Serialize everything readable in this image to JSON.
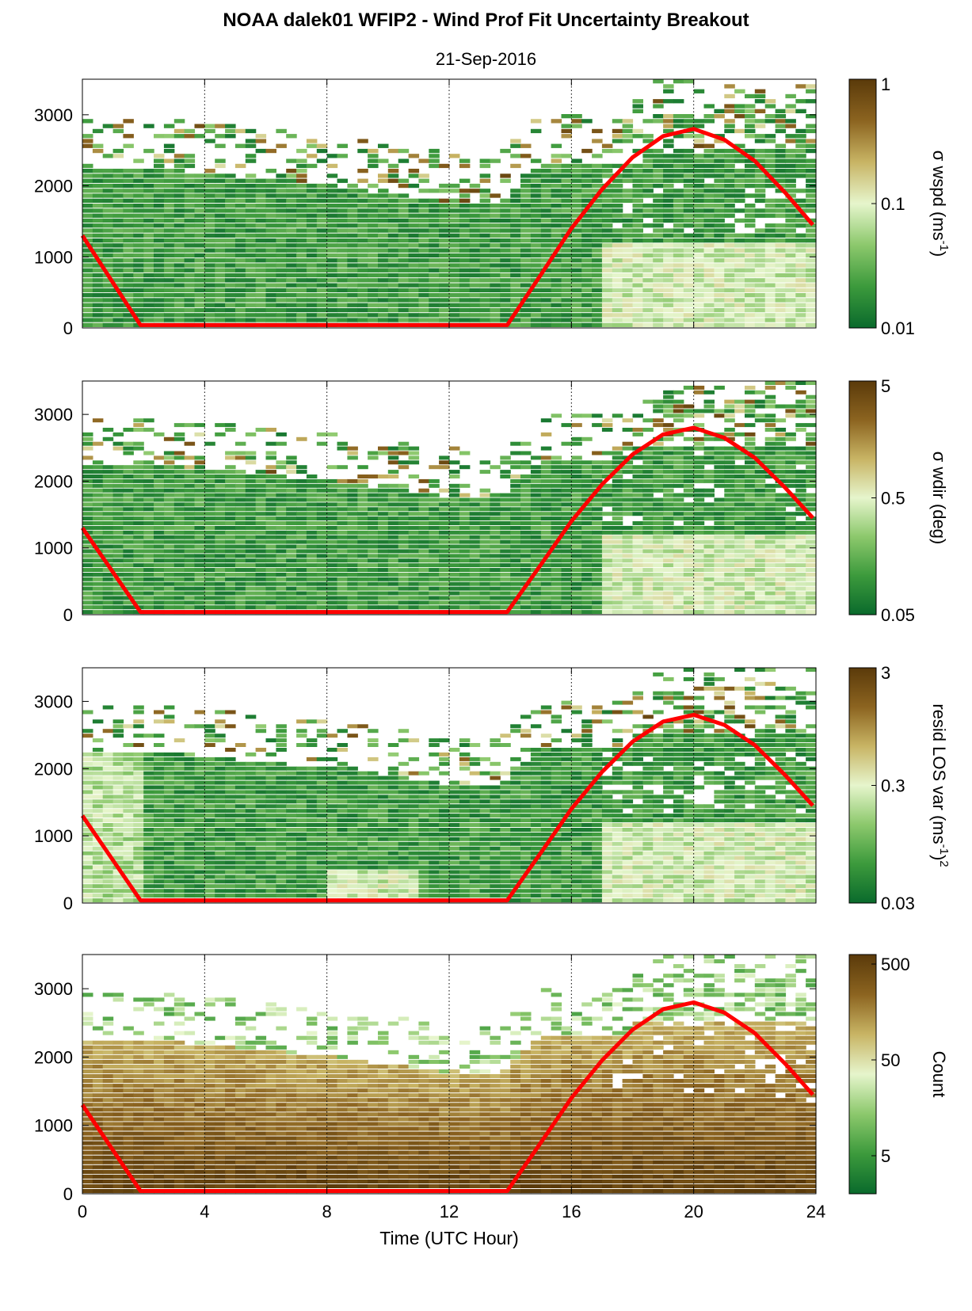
{
  "figure": {
    "title": "NOAA dalek01 WFIP2 - Wind Prof Fit Uncertainty Breakout",
    "subtitle": "21-Sep-2016"
  },
  "colors": {
    "colormap": [
      "#0a6a2c",
      "#3c9a3c",
      "#8cc86c",
      "#e6f5cc",
      "#c8b464",
      "#8c6420",
      "#5a3a0a"
    ],
    "sun_curve": "#ff0000",
    "axis": "#000000"
  },
  "chart_data": [
    {
      "type": "heatmap",
      "name": "panel-wspd",
      "xlim": [
        0,
        24
      ],
      "ylim": [
        0,
        3500
      ],
      "xticks": [
        0,
        4,
        8,
        12,
        16,
        20,
        24
      ],
      "yticks": [
        0,
        1000,
        2000,
        3000
      ],
      "xgrid": [
        4,
        8,
        12,
        16,
        20
      ],
      "colorbar": {
        "label": "σ wspd (ms",
        "sup": "-1",
        "suffix": ")",
        "ticks": [
          "1",
          "0.1",
          "0.01"
        ],
        "scale": "log"
      },
      "sun_curve": {
        "x": [
          0,
          1.9,
          13.9,
          15,
          16,
          17,
          18,
          19,
          20,
          21,
          22,
          23,
          23.9
        ],
        "y": [
          1300,
          40,
          40,
          750,
          1400,
          1950,
          2400,
          2700,
          2800,
          2650,
          2350,
          1900,
          1450
        ]
      }
    },
    {
      "type": "heatmap",
      "name": "panel-wdir",
      "xlim": [
        0,
        24
      ],
      "ylim": [
        0,
        3500
      ],
      "xticks": [
        0,
        4,
        8,
        12,
        16,
        20,
        24
      ],
      "yticks": [
        0,
        1000,
        2000,
        3000
      ],
      "xgrid": [
        4,
        8,
        12,
        16,
        20
      ],
      "colorbar": {
        "label": "σ wdir (deg)",
        "sup": "",
        "suffix": "",
        "ticks": [
          "5",
          "0.5",
          "0.05"
        ],
        "scale": "log"
      },
      "sun_curve": {
        "x": [
          0,
          1.9,
          13.9,
          15,
          16,
          17,
          18,
          19,
          20,
          21,
          22,
          23,
          23.9
        ],
        "y": [
          1300,
          40,
          40,
          750,
          1400,
          1950,
          2400,
          2700,
          2800,
          2650,
          2350,
          1900,
          1450
        ]
      }
    },
    {
      "type": "heatmap",
      "name": "panel-resid",
      "xlim": [
        0,
        24
      ],
      "ylim": [
        0,
        3500
      ],
      "xticks": [
        0,
        4,
        8,
        12,
        16,
        20,
        24
      ],
      "yticks": [
        0,
        1000,
        2000,
        3000
      ],
      "xgrid": [
        4,
        8,
        12,
        16,
        20
      ],
      "colorbar": {
        "label": "resid LOS var (ms",
        "sup": "-1",
        "suffix": ")",
        "sup2": "2",
        "ticks": [
          "3",
          "0.3",
          "0.03"
        ],
        "scale": "log"
      },
      "sun_curve": {
        "x": [
          0,
          1.9,
          13.9,
          15,
          16,
          17,
          18,
          19,
          20,
          21,
          22,
          23,
          23.9
        ],
        "y": [
          1300,
          40,
          40,
          750,
          1400,
          1950,
          2400,
          2700,
          2800,
          2650,
          2350,
          1900,
          1450
        ]
      }
    },
    {
      "type": "heatmap",
      "name": "panel-count",
      "xlim": [
        0,
        24
      ],
      "ylim": [
        0,
        3500
      ],
      "xticks": [
        0,
        4,
        8,
        12,
        16,
        20,
        24
      ],
      "yticks": [
        0,
        1000,
        2000,
        3000
      ],
      "xgrid": [
        4,
        8,
        12,
        16,
        20
      ],
      "xlabel": "Time (UTC Hour)",
      "colorbar": {
        "label": "Count",
        "sup": "",
        "suffix": "",
        "ticks": [
          "500",
          "50",
          "5"
        ],
        "scale": "log"
      },
      "sun_curve": {
        "x": [
          0,
          1.9,
          13.9,
          15,
          16,
          17,
          18,
          19,
          20,
          21,
          22,
          23,
          23.9
        ],
        "y": [
          1300,
          40,
          40,
          750,
          1400,
          1950,
          2400,
          2700,
          2800,
          2650,
          2350,
          1900,
          1450
        ]
      }
    }
  ]
}
